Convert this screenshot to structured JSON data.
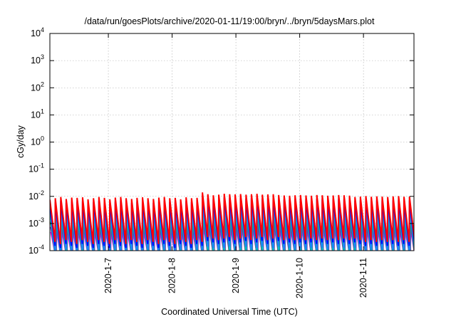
{
  "chart_data": {
    "type": "line",
    "title": "/data/run/goesPlots/archive/2020-01-11/19:00/bryn/../bryn/5daysMars.plot",
    "xlabel": "Coordinated Universal Time (UTC)",
    "ylabel": "cGy/day",
    "yscale": "log",
    "ylim": [
      0.0001,
      10000
    ],
    "ytick_exponents": [
      -4,
      -3,
      -2,
      -1,
      0,
      1,
      2,
      3,
      4
    ],
    "xlim": [
      "2020-01-06T02:00",
      "2020-01-11T19:00"
    ],
    "xticks": [
      {
        "at": "2020-01-07T00:00",
        "label": "2020-1-7"
      },
      {
        "at": "2020-01-08T00:00",
        "label": "2020-1-8"
      },
      {
        "at": "2020-01-09T00:00",
        "label": "2020-1-9"
      },
      {
        "at": "2020-01-10T00:00",
        "label": "2020-1-10"
      },
      {
        "at": "2020-01-11T00:00",
        "label": "2020-1-11"
      }
    ],
    "grid": true,
    "legend": false,
    "cycle_hours": 2.05,
    "series": [
      {
        "color": "#ff0000",
        "peak_scale": 1.0,
        "phase_hours": 0.0
      },
      {
        "color": "#0000ff",
        "peak_scale": 0.72,
        "phase_hours": 0.0
      },
      {
        "color": "#1e7fff",
        "peak_scale": 0.45,
        "phase_hours": 0.1
      },
      {
        "color": "#00bcd4",
        "peak_scale": 0.28,
        "phase_hours": 0.2
      },
      {
        "color": "#2e8b57",
        "peak_scale": 0.16,
        "phase_hours": 0.3
      },
      {
        "color": "#9400d3",
        "peak_scale": 0.1,
        "phase_hours": 0.35
      },
      {
        "color": "#ff00ff",
        "peak_scale": 0.065,
        "phase_hours": 0.4
      }
    ],
    "peak_cGy_per_day": [
      0.0075,
      0.0085,
      0.0095,
      0.008,
      0.009,
      0.0088,
      0.0092,
      0.0078,
      0.0085,
      0.0095,
      0.0088,
      0.0078,
      0.009,
      0.0095,
      0.0085,
      0.008,
      0.0088,
      0.0092,
      0.0085,
      0.008,
      0.009,
      0.0095,
      0.0085,
      0.0088,
      0.0078,
      0.0092,
      0.0085,
      0.0088,
      0.014,
      0.012,
      0.011,
      0.0115,
      0.0125,
      0.012,
      0.0118,
      0.0122,
      0.0115,
      0.012,
      0.0125,
      0.0115,
      0.0118,
      0.012,
      0.0112,
      0.0108,
      0.0105,
      0.011,
      0.0112,
      0.0108,
      0.0105,
      0.0112,
      0.011,
      0.0105,
      0.0108,
      0.0112,
      0.011,
      0.0106,
      0.0095,
      0.0098,
      0.0102,
      0.0096,
      0.01,
      0.0098,
      0.0095,
      0.01,
      0.0102,
      0.0096,
      0.0098,
      0.01
    ],
    "trough_cGy_per_day": [
      0.0006,
      0.0005,
      0.0007,
      0.0006,
      0.0005,
      0.0007,
      0.0006,
      0.0005,
      0.0007,
      0.0006,
      0.0005,
      0.0007,
      0.0006,
      0.0005,
      0.0007,
      0.0006,
      0.0005,
      0.0007,
      0.0006,
      0.0005,
      0.0007,
      0.0006,
      0.0005,
      0.0007,
      0.0006,
      0.0005,
      0.0007,
      0.0006,
      0.0009,
      0.0008,
      0.0007,
      0.0008,
      0.0009,
      0.0007,
      0.0008,
      0.0009,
      0.0007,
      0.0008,
      0.0009,
      0.0007,
      0.0008,
      0.0009,
      0.0007,
      0.0008,
      0.0007,
      0.0008,
      0.0007,
      0.0008,
      0.0007,
      0.0008,
      0.0007,
      0.0008,
      0.0007,
      0.0008,
      0.0007,
      0.0008,
      0.0007,
      0.0006,
      0.0007,
      0.0006,
      0.0007,
      0.0006,
      0.0007,
      0.0006,
      0.0007,
      0.0006,
      0.0007,
      0.0006
    ]
  }
}
